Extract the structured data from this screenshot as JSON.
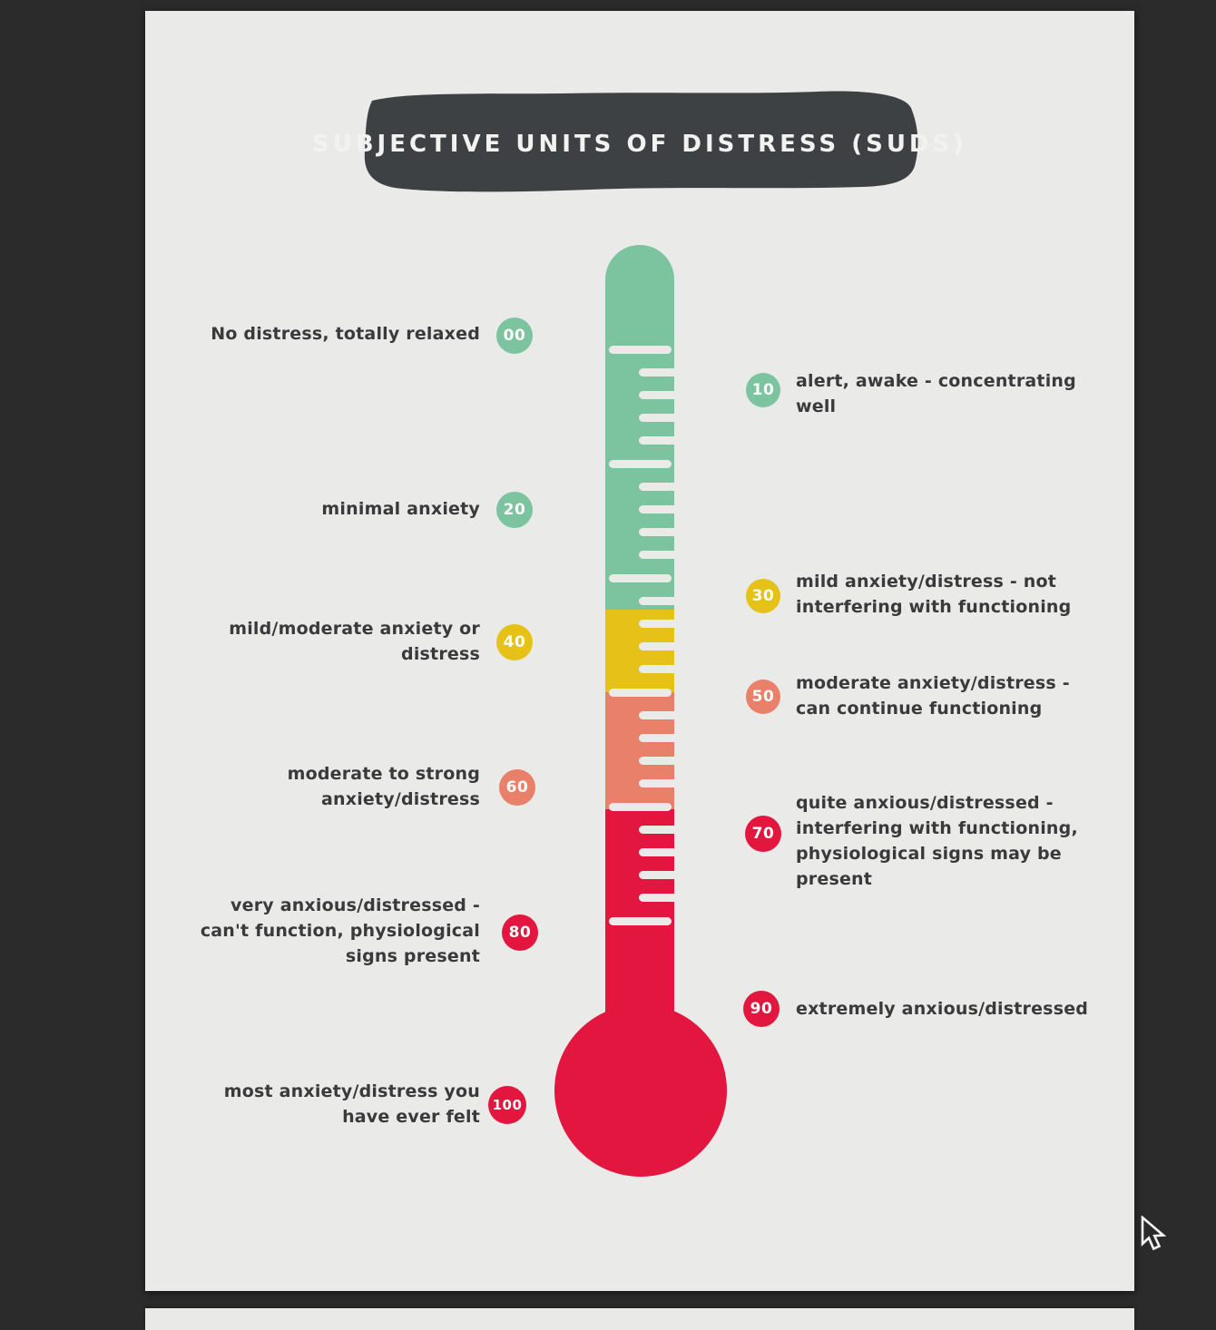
{
  "title": "SUBJECTIVE UNITS OF DISTRESS (SUDS)",
  "colors": {
    "green": "#7cc3a0",
    "yellow": "#e6c219",
    "salmon": "#e8806a",
    "red": "#e2163e",
    "page_background": "#eaeae8",
    "viewer_background": "#2b2b2c",
    "banner_background": "#3e4144",
    "text": "#3a3a3c"
  },
  "thermometer": {
    "segments": [
      {
        "name": "green",
        "color": "#7cc3a0"
      },
      {
        "name": "yellow",
        "color": "#e6c219"
      },
      {
        "name": "salmon",
        "color": "#e8806a"
      },
      {
        "name": "red",
        "color": "#e2163e"
      }
    ]
  },
  "scale": {
    "left_items": [
      {
        "value": "00",
        "color": "green",
        "lines": [
          "No distress, totally relaxed"
        ]
      },
      {
        "value": "20",
        "color": "green",
        "lines": [
          "minimal anxiety"
        ]
      },
      {
        "value": "40",
        "color": "yellow",
        "lines": [
          "mild/moderate anxiety or",
          "distress"
        ]
      },
      {
        "value": "60",
        "color": "salmon",
        "lines": [
          "moderate to strong",
          "anxiety/distress"
        ]
      },
      {
        "value": "80",
        "color": "red",
        "lines": [
          "very anxious/distressed -",
          "can't function, physiological",
          "signs present"
        ]
      },
      {
        "value": "100",
        "color": "red",
        "lines": [
          "most anxiety/distress you",
          "have ever felt"
        ]
      }
    ],
    "right_items": [
      {
        "value": "10",
        "color": "green",
        "lines": [
          "alert, awake - concentrating",
          "well"
        ]
      },
      {
        "value": "30",
        "color": "yellow",
        "lines": [
          "mild anxiety/distress - not",
          "interfering with functioning"
        ]
      },
      {
        "value": "50",
        "color": "salmon",
        "lines": [
          "moderate anxiety/distress -",
          "can continue functioning"
        ]
      },
      {
        "value": "70",
        "color": "red",
        "lines": [
          "quite anxious/distressed -",
          "interfering with functioning,",
          "physiological signs may be",
          "present"
        ]
      },
      {
        "value": "90",
        "color": "red",
        "lines": [
          "extremely anxious/distressed"
        ]
      }
    ]
  }
}
